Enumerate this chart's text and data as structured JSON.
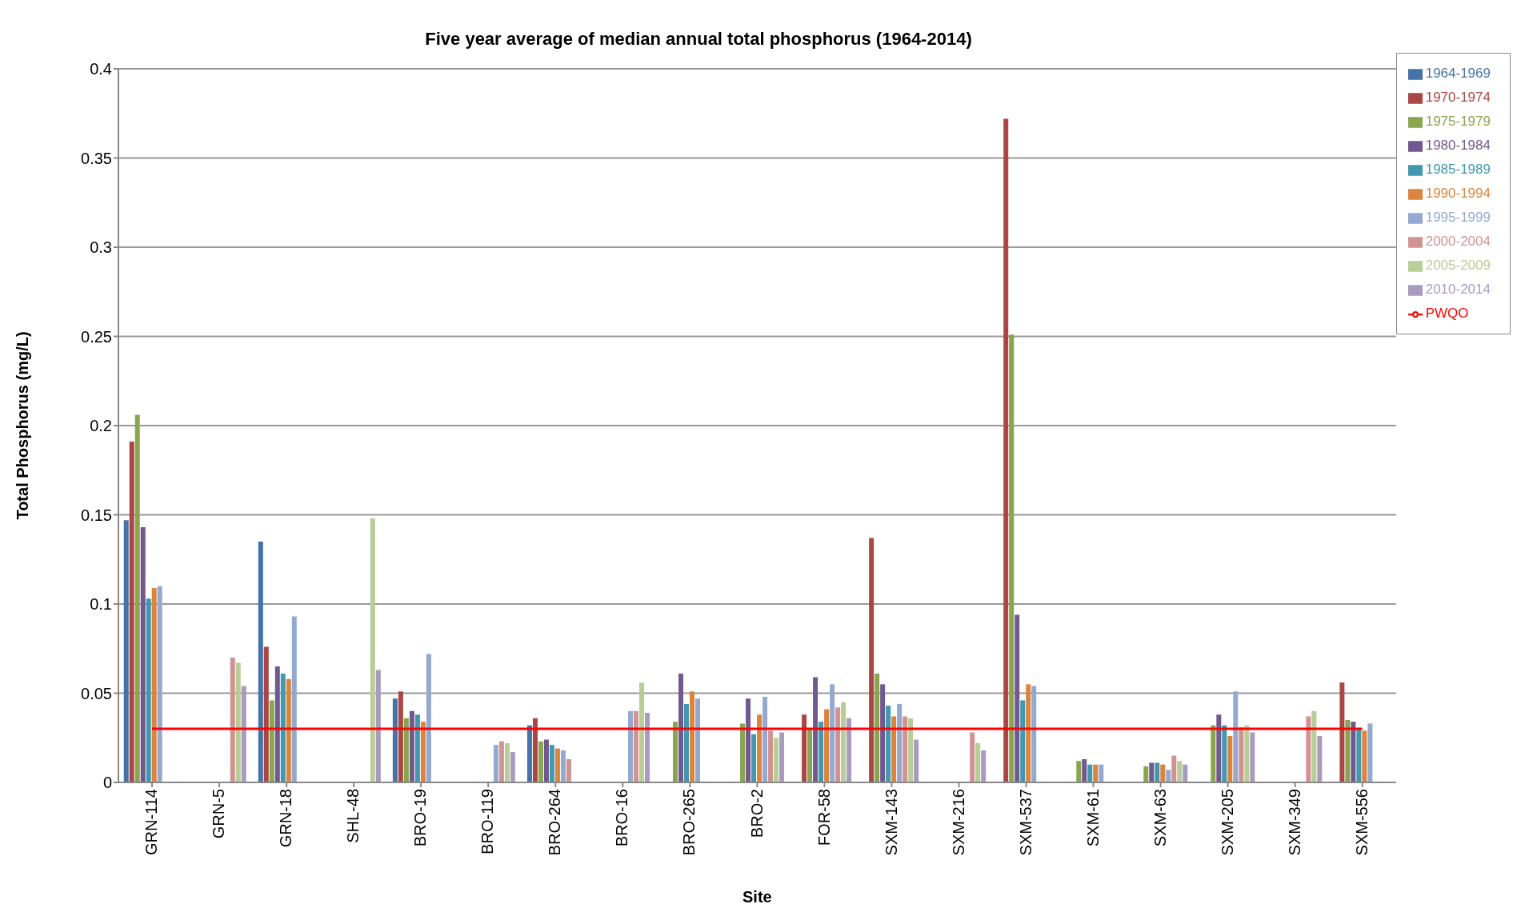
{
  "chart_data": {
    "type": "bar",
    "title": "Five year average of median annual total phosphorus (1964-2014)",
    "xlabel": "Site",
    "ylabel": "Total Phosphorus (mg/L)",
    "categories": [
      "GRN-114",
      "GRN-5",
      "GRN-18",
      "SHL-48",
      "BRO-19",
      "BRO-119",
      "BRO-264",
      "BRO-16",
      "BRO-265",
      "BRO-2",
      "FOR-58",
      "SXM-143",
      "SXM-216",
      "SXM-537",
      "SXM-61",
      "SXM-63",
      "SXM-205",
      "SXM-349",
      "SXM-556"
    ],
    "series": [
      {
        "name": "1964-1969",
        "color": "#4572a7",
        "values": [
          0.147,
          null,
          0.135,
          null,
          0.047,
          null,
          0.032,
          null,
          null,
          null,
          null,
          null,
          null,
          null,
          null,
          null,
          null,
          null,
          null
        ]
      },
      {
        "name": "1970-1974",
        "color": "#aa4643",
        "values": [
          0.191,
          null,
          0.076,
          null,
          0.051,
          null,
          0.036,
          null,
          null,
          null,
          0.038,
          0.137,
          null,
          0.372,
          null,
          null,
          null,
          null,
          0.056
        ]
      },
      {
        "name": "1975-1979",
        "color": "#89a54e",
        "values": [
          0.206,
          null,
          0.046,
          null,
          0.036,
          null,
          0.023,
          null,
          0.034,
          0.033,
          0.03,
          0.061,
          null,
          0.251,
          0.012,
          0.009,
          0.032,
          null,
          0.035
        ]
      },
      {
        "name": "1980-1984",
        "color": "#71588f",
        "values": [
          0.143,
          null,
          0.065,
          null,
          0.04,
          null,
          0.024,
          null,
          0.061,
          0.047,
          0.059,
          0.055,
          null,
          0.094,
          0.013,
          0.011,
          0.038,
          null,
          0.034
        ]
      },
      {
        "name": "1985-1989",
        "color": "#4198af",
        "values": [
          0.103,
          null,
          0.061,
          null,
          0.038,
          null,
          0.021,
          null,
          0.044,
          0.027,
          0.034,
          0.043,
          null,
          0.046,
          0.01,
          0.011,
          0.032,
          null,
          0.03
        ]
      },
      {
        "name": "1990-1994",
        "color": "#db843d",
        "values": [
          0.109,
          null,
          0.058,
          null,
          0.034,
          null,
          0.019,
          null,
          0.051,
          0.038,
          0.041,
          0.037,
          null,
          0.055,
          0.01,
          0.01,
          0.026,
          null,
          0.029
        ]
      },
      {
        "name": "1995-1999",
        "color": "#93a9cf",
        "values": [
          0.11,
          null,
          0.093,
          null,
          0.072,
          0.021,
          0.018,
          0.04,
          0.047,
          0.048,
          0.055,
          0.044,
          null,
          0.054,
          0.01,
          0.007,
          0.051,
          null,
          0.033
        ]
      },
      {
        "name": "2000-2004",
        "color": "#d19392",
        "values": [
          null,
          0.07,
          null,
          null,
          null,
          0.023,
          0.013,
          0.04,
          null,
          0.029,
          0.042,
          0.037,
          0.028,
          null,
          null,
          0.015,
          0.031,
          0.037,
          null
        ]
      },
      {
        "name": "2005-2009",
        "color": "#b9cd96",
        "values": [
          null,
          0.067,
          null,
          0.148,
          null,
          0.022,
          null,
          0.056,
          null,
          0.025,
          0.045,
          0.036,
          0.022,
          null,
          null,
          0.012,
          0.032,
          0.04,
          null
        ]
      },
      {
        "name": "2010-2014",
        "color": "#a99bbd",
        "values": [
          null,
          0.054,
          null,
          0.063,
          null,
          0.017,
          null,
          0.039,
          null,
          0.028,
          0.036,
          0.024,
          0.018,
          null,
          null,
          0.01,
          0.028,
          0.026,
          null
        ]
      },
      {
        "name": "PWQO",
        "type": "line",
        "color": "#ff0000",
        "values": [
          0.03,
          0.03,
          0.03,
          0.03,
          0.03,
          0.03,
          0.03,
          0.03,
          0.03,
          0.03,
          0.03,
          0.03,
          0.03,
          0.03,
          0.03,
          0.03,
          0.03,
          0.03,
          0.03
        ]
      }
    ],
    "ylim": [
      0,
      0.4
    ],
    "yticks": [
      0,
      0.05,
      0.1,
      0.15,
      0.2,
      0.25,
      0.3,
      0.35,
      0.4
    ],
    "grid": "y",
    "legend": "top right",
    "marker": "none",
    "line_style": "solid"
  }
}
